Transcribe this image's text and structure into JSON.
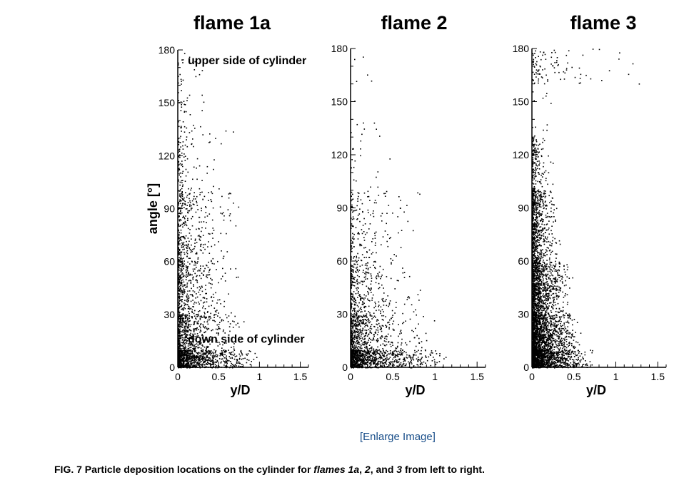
{
  "chart_data": [
    {
      "type": "scatter",
      "title": "flame 1a",
      "xlabel": "y/D",
      "ylabel": "angle [°]",
      "xlim": [
        0,
        1.6
      ],
      "ylim": [
        0,
        180
      ],
      "xticks": [
        "0",
        "0.5",
        "1",
        "1.5"
      ],
      "yticks": [
        "0",
        "30",
        "60",
        "90",
        "120",
        "150",
        "180"
      ],
      "annotations": [
        "upper side of cylinder",
        "down side of cylinder"
      ],
      "density_profile": [
        {
          "angle": [
            0,
            10
          ],
          "points": 900,
          "xmax": 1.05
        },
        {
          "angle": [
            10,
            30
          ],
          "points": 520,
          "xmax": 0.85
        },
        {
          "angle": [
            30,
            60
          ],
          "points": 400,
          "xmax": 0.8
        },
        {
          "angle": [
            60,
            100
          ],
          "points": 340,
          "xmax": 0.85
        },
        {
          "angle": [
            100,
            140
          ],
          "points": 110,
          "xmax": 0.75
        },
        {
          "angle": [
            140,
            180
          ],
          "points": 40,
          "xmax": 0.55
        }
      ]
    },
    {
      "type": "scatter",
      "title": "flame 2",
      "xlabel": "y/D",
      "ylabel": "",
      "xlim": [
        0,
        1.6
      ],
      "ylim": [
        0,
        180
      ],
      "xticks": [
        "0",
        "0.5",
        "1",
        "1.5"
      ],
      "yticks": [
        "0",
        "30",
        "60",
        "90",
        "120",
        "150",
        "180"
      ],
      "density_profile": [
        {
          "angle": [
            0,
            10
          ],
          "points": 950,
          "xmax": 1.2
        },
        {
          "angle": [
            10,
            30
          ],
          "points": 500,
          "xmax": 1.0
        },
        {
          "angle": [
            30,
            60
          ],
          "points": 300,
          "xmax": 0.9
        },
        {
          "angle": [
            60,
            100
          ],
          "points": 170,
          "xmax": 0.9
        },
        {
          "angle": [
            100,
            140
          ],
          "points": 25,
          "xmax": 0.6
        },
        {
          "angle": [
            140,
            180
          ],
          "points": 6,
          "xmax": 0.5
        }
      ]
    },
    {
      "type": "scatter",
      "title": "flame 3",
      "xlabel": "y/D",
      "ylabel": "",
      "xlim": [
        0,
        1.6
      ],
      "ylim": [
        0,
        180
      ],
      "xticks": [
        "0",
        "0.5",
        "1",
        "1.5"
      ],
      "yticks": [
        "0",
        "30",
        "60",
        "90",
        "120",
        "150",
        "180"
      ],
      "density_profile": [
        {
          "angle": [
            0,
            10
          ],
          "points": 1300,
          "xmax": 0.75
        },
        {
          "angle": [
            10,
            30
          ],
          "points": 1250,
          "xmax": 0.6
        },
        {
          "angle": [
            30,
            60
          ],
          "points": 1050,
          "xmax": 0.5
        },
        {
          "angle": [
            60,
            100
          ],
          "points": 650,
          "xmax": 0.35
        },
        {
          "angle": [
            100,
            130
          ],
          "points": 160,
          "xmax": 0.25
        },
        {
          "angle": [
            130,
            160
          ],
          "points": 12,
          "xmax": 0.4
        },
        {
          "angle": [
            160,
            180
          ],
          "points": 95,
          "xmax": 1.5
        }
      ]
    }
  ],
  "enlarge_link": "[Enlarge Image]",
  "caption": {
    "prefix": "FIG. 7 Particle deposition locations on the cylinder for ",
    "f1": "flames 1a",
    "sep1": ", ",
    "f2": "2",
    "sep2": ", and ",
    "f3": "3",
    "suffix": " from left to right."
  }
}
